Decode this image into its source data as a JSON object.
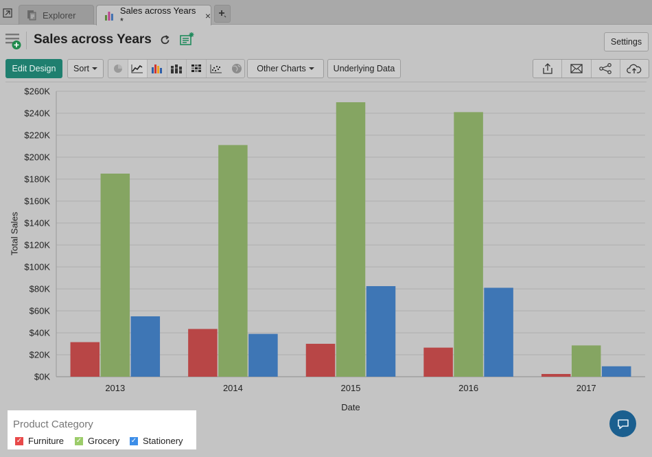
{
  "tabs": [
    {
      "label": "Explorer"
    },
    {
      "label": "Sales across Years *"
    }
  ],
  "header": {
    "title": "Sales across Years",
    "settings_label": "Settings"
  },
  "toolbar": {
    "edit_design_label": "Edit Design",
    "sort_label": "Sort",
    "other_charts_label": "Other Charts",
    "underlying_data_label": "Underlying Data"
  },
  "chart_data": {
    "type": "bar",
    "title": "",
    "xlabel": "Date",
    "ylabel": "Total Sales",
    "categories": [
      "2013",
      "2014",
      "2015",
      "2016",
      "2017"
    ],
    "ylim": [
      0,
      260000
    ],
    "yticks": [
      "$0K",
      "$20K",
      "$40K",
      "$60K",
      "$80K",
      "$100K",
      "$120K",
      "$140K",
      "$160K",
      "$180K",
      "$200K",
      "$220K",
      "$240K",
      "$260K"
    ],
    "grid": true,
    "legend_position": "bottom-left",
    "series": [
      {
        "name": "Furniture",
        "color": "#b84646",
        "values": [
          31500,
          43500,
          30000,
          26500,
          2500
        ]
      },
      {
        "name": "Grocery",
        "color": "#85a562",
        "values": [
          185000,
          211000,
          250000,
          241000,
          28500
        ]
      },
      {
        "name": "Stationery",
        "color": "#3e76b5",
        "values": [
          55000,
          39000,
          82500,
          81000,
          9500
        ]
      }
    ]
  },
  "legend": {
    "title": "Product Category",
    "items": [
      {
        "label": "Furniture",
        "color": "#e84a4a"
      },
      {
        "label": "Grocery",
        "color": "#9ccc6a"
      },
      {
        "label": "Stationery",
        "color": "#3d8ee8"
      }
    ]
  }
}
